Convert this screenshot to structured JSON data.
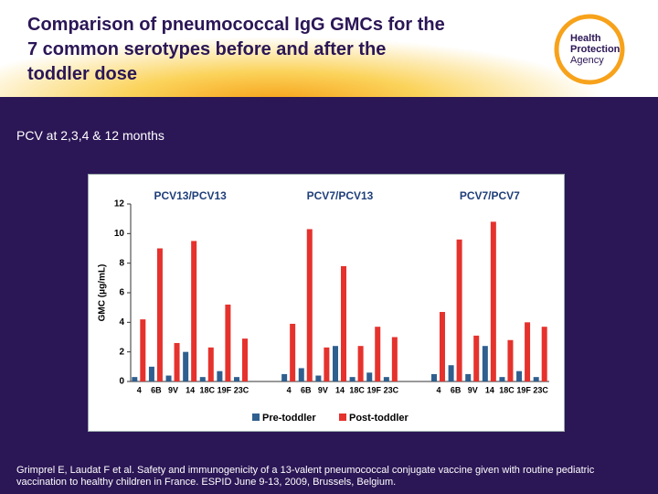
{
  "header": {
    "title_lines": [
      "Comparison of pneumococcal IgG GMCs for the",
      "7 common serotypes before and after the",
      "toddler dose"
    ],
    "logo_lines": [
      "Health",
      "Protection",
      "Agency"
    ]
  },
  "subtitle": "PCV at 2,3,4 & 12 months",
  "chart_data": {
    "type": "grouped-bar",
    "y_label": "GMC (μg/mL)",
    "groups": [
      {
        "name": "PCV13/PCV13",
        "categories": [
          "4",
          "6B",
          "9V",
          "14",
          "18C",
          "19F",
          "23C"
        ]
      },
      {
        "name": "PCV7/PCV13",
        "categories": [
          "4",
          "6B",
          "9V",
          "14",
          "18C",
          "19F",
          "23C"
        ]
      },
      {
        "name": "PCV7/PCV7",
        "categories": [
          "4",
          "6B",
          "9V",
          "14",
          "18C",
          "19F",
          "23C"
        ]
      }
    ],
    "series": [
      {
        "name": "Pre-toddler",
        "color": "#2f5f8f",
        "values": [
          0.3,
          1.0,
          0.4,
          2.0,
          0.3,
          0.7,
          0.3,
          0.5,
          0.9,
          0.4,
          2.4,
          0.3,
          0.6,
          0.3,
          0.5,
          1.1,
          0.5,
          2.4,
          0.3,
          0.7,
          0.3
        ]
      },
      {
        "name": "Post-toddler",
        "color": "#e5322d",
        "values": [
          4.2,
          9.0,
          2.6,
          9.5,
          2.3,
          5.2,
          2.9,
          3.9,
          10.3,
          2.3,
          7.8,
          2.4,
          3.7,
          3.0,
          4.7,
          9.6,
          3.1,
          10.8,
          2.8,
          4.0,
          3.7
        ]
      }
    ],
    "ylim": [
      0,
      12
    ],
    "yticks": [
      0,
      2,
      4,
      6,
      8,
      10,
      12
    ]
  },
  "citation": "Grimprel E, Laudat F et al. Safety and immunogenicity of a 13-valent pneumococcal conjugate vaccine given with routine pediatric vaccination to healthy children in France. ESPID June 9-13, 2009, Brussels, Belgium."
}
